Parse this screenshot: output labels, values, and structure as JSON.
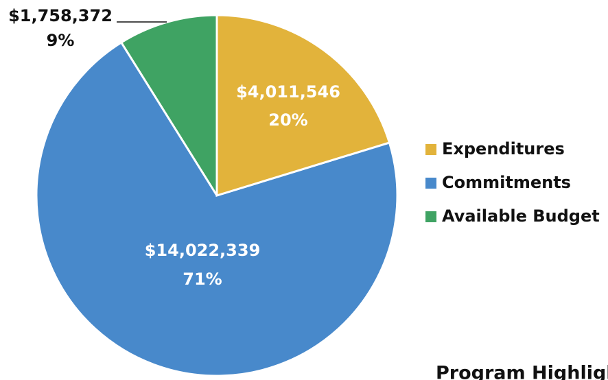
{
  "chart_data": {
    "type": "pie",
    "categories": [
      "Expenditures",
      "Commitments",
      "Available Budget"
    ],
    "values": [
      4011546,
      14022339,
      1758372
    ],
    "value_labels": [
      "$4,011,546",
      "$14,022,339",
      "$1,758,372"
    ],
    "percentages": [
      20,
      71,
      9
    ],
    "percentage_labels": [
      "20%",
      "71%",
      "9%"
    ],
    "colors": [
      "#E2B33B",
      "#4889CB",
      "#3FA363"
    ],
    "legend": "right",
    "annotation": "Program Highlights"
  }
}
